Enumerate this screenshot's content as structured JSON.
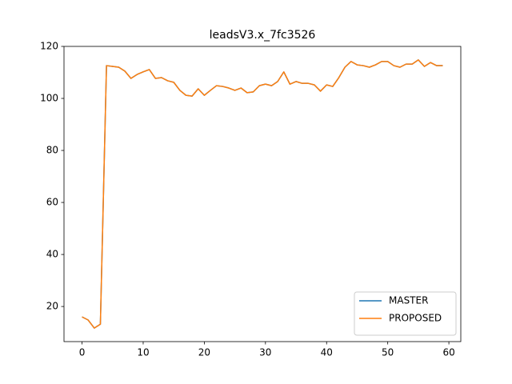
{
  "chart_data": {
    "type": "line",
    "title": "leadsV3.x_7fc3526",
    "x": [
      0,
      1,
      2,
      3,
      4,
      5,
      6,
      7,
      8,
      9,
      10,
      11,
      12,
      13,
      14,
      15,
      16,
      17,
      18,
      19,
      20,
      21,
      22,
      23,
      24,
      25,
      26,
      27,
      28,
      29,
      30,
      31,
      32,
      33,
      34,
      35,
      36,
      37,
      38,
      39,
      40,
      41,
      42,
      43,
      44,
      45,
      46,
      47,
      48,
      49,
      50,
      51,
      52,
      53,
      54,
      55,
      56,
      57,
      58,
      59
    ],
    "series": [
      {
        "name": "MASTER",
        "color": "#1f77b4",
        "values": [
          16.0,
          14.8,
          11.7,
          13.2,
          112.6,
          112.3,
          112.0,
          110.5,
          107.7,
          109.2,
          110.2,
          111.1,
          107.7,
          108.0,
          106.8,
          106.2,
          103.1,
          101.2,
          100.9,
          103.7,
          101.2,
          103.1,
          104.9,
          104.6,
          104.0,
          103.1,
          104.0,
          102.2,
          102.5,
          104.9,
          105.5,
          104.9,
          106.5,
          110.2,
          105.5,
          106.5,
          105.8,
          105.8,
          105.2,
          102.8,
          105.2,
          104.6,
          108.0,
          112.0,
          114.2,
          112.9,
          112.6,
          112.0,
          112.9,
          114.2,
          114.2,
          112.6,
          112.0,
          113.2,
          113.2,
          114.8,
          112.3,
          113.8,
          112.6,
          112.6
        ]
      },
      {
        "name": "PROPOSED",
        "color": "#ff7f0e",
        "values": [
          16.0,
          14.8,
          11.7,
          13.2,
          112.6,
          112.3,
          112.0,
          110.5,
          107.7,
          109.2,
          110.2,
          111.1,
          107.7,
          108.0,
          106.8,
          106.2,
          103.1,
          101.2,
          100.9,
          103.7,
          101.2,
          103.1,
          104.9,
          104.6,
          104.0,
          103.1,
          104.0,
          102.2,
          102.5,
          104.9,
          105.5,
          104.9,
          106.5,
          110.2,
          105.5,
          106.5,
          105.8,
          105.8,
          105.2,
          102.8,
          105.2,
          104.6,
          108.0,
          112.0,
          114.2,
          112.9,
          112.6,
          112.0,
          112.9,
          114.2,
          114.2,
          112.6,
          112.0,
          113.2,
          113.2,
          114.8,
          112.3,
          113.8,
          112.6,
          112.6
        ]
      }
    ],
    "xlim": [
      -2.95,
      61.95
    ],
    "ylim": [
      6.5,
      120.0
    ],
    "xticks": [
      0,
      10,
      20,
      30,
      40,
      50,
      60
    ],
    "yticks": [
      20,
      40,
      60,
      80,
      100,
      120
    ],
    "legend": "lower right"
  }
}
